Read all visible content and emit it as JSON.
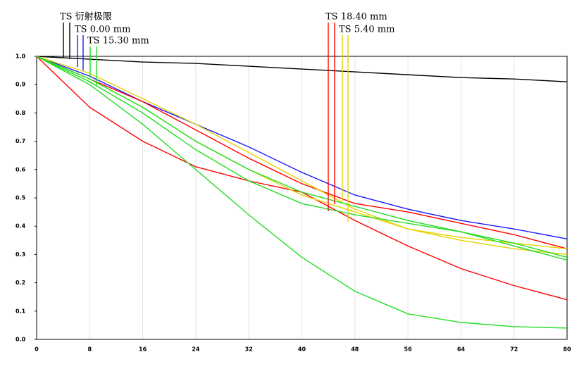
{
  "chart_data": {
    "type": "line",
    "x": [
      0,
      8,
      16,
      24,
      32,
      40,
      48,
      56,
      64,
      72,
      80
    ],
    "xlim": [
      0,
      80
    ],
    "xticks": [
      0,
      8,
      16,
      24,
      32,
      40,
      48,
      56,
      64,
      72,
      80
    ],
    "ylim": [
      0,
      1
    ],
    "yticks": [
      {
        "value": 0,
        "label": "0.0"
      },
      0.1,
      0.2,
      0.3,
      0.4,
      0.5,
      0.6,
      0.7,
      0.8,
      0.9,
      {
        "value": 1,
        "label": "1.0"
      }
    ],
    "grid": true,
    "legend": [
      {
        "label": "TS 衍射极限",
        "color": "#000000"
      },
      {
        "label": "TS 0.00 mm",
        "color": "#1a1aff"
      },
      {
        "label": "TS 15.30 mm",
        "color": "#22dd22"
      },
      {
        "label": "TS 18.40 mm",
        "color": "#ff0000"
      },
      {
        "label": "TS 5.40 mm",
        "color": "#e6d200"
      }
    ],
    "series": [
      {
        "color": "#000000",
        "values": [
          1.0,
          0.99,
          0.98,
          0.975,
          0.965,
          0.955,
          0.945,
          0.935,
          0.925,
          0.92,
          0.91
        ]
      },
      {
        "color": "#1a1aff",
        "values": [
          1.0,
          0.93,
          0.84,
          0.76,
          0.68,
          0.59,
          0.51,
          0.46,
          0.42,
          0.39,
          0.355
        ]
      },
      {
        "color": "#ff0000",
        "values": [
          1.0,
          0.92,
          0.84,
          0.74,
          0.64,
          0.55,
          0.48,
          0.45,
          0.41,
          0.37,
          0.32
        ]
      },
      {
        "color": "#ff0000",
        "values": [
          1.0,
          0.82,
          0.7,
          0.61,
          0.56,
          0.52,
          0.42,
          0.33,
          0.25,
          0.19,
          0.14
        ]
      },
      {
        "color": "#e6d200",
        "values": [
          1.0,
          0.94,
          0.85,
          0.76,
          0.66,
          0.56,
          0.46,
          0.39,
          0.35,
          0.32,
          0.3
        ]
      },
      {
        "color": "#e6d200",
        "values": [
          1.0,
          0.92,
          0.82,
          0.7,
          0.6,
          0.51,
          0.45,
          0.39,
          0.36,
          0.34,
          0.32
        ]
      },
      {
        "color": "#22dd22",
        "values": [
          1.0,
          0.91,
          0.8,
          0.67,
          0.56,
          0.48,
          0.44,
          0.41,
          0.38,
          0.34,
          0.29
        ]
      },
      {
        "color": "#22dd22",
        "values": [
          1.0,
          0.9,
          0.76,
          0.6,
          0.44,
          0.29,
          0.17,
          0.09,
          0.06,
          0.045,
          0.04
        ]
      },
      {
        "color": "#22dd22",
        "values": [
          1.0,
          0.92,
          0.82,
          0.7,
          0.6,
          0.52,
          0.47,
          0.42,
          0.38,
          0.33,
          0.28
        ]
      }
    ]
  }
}
